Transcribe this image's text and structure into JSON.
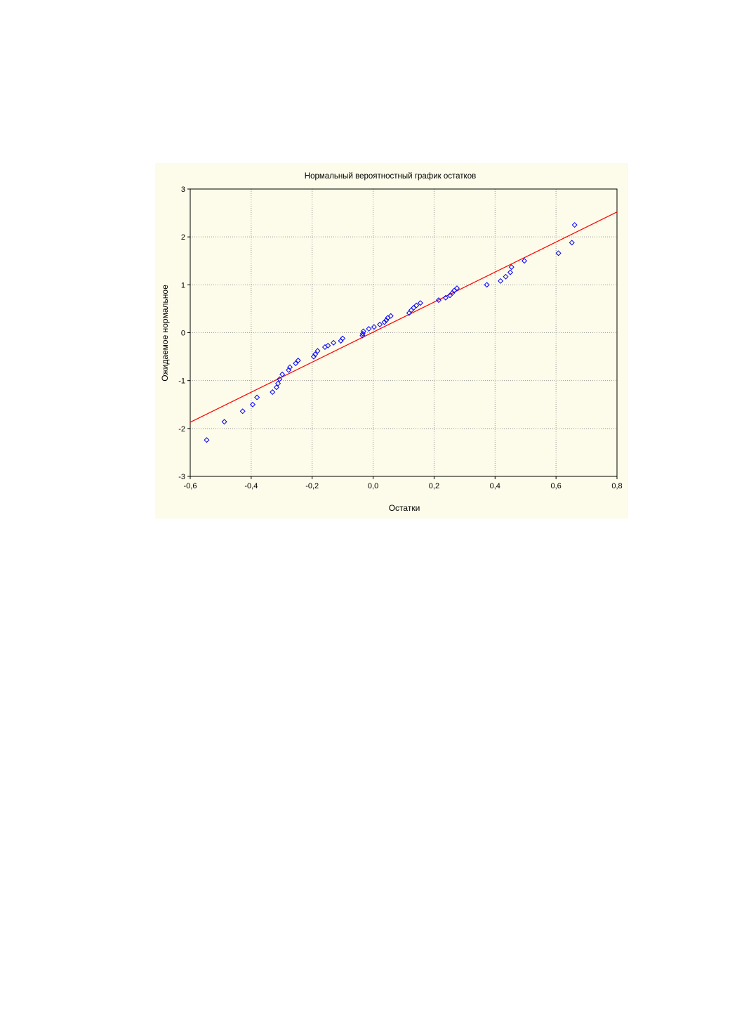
{
  "chart_data": {
    "type": "scatter",
    "title": "Нормальный вероятностный график остатков",
    "xlabel": "Остатки",
    "ylabel": "Ожидаемое нормальное",
    "xlim": [
      -0.6,
      0.8
    ],
    "ylim": [
      -3,
      3
    ],
    "x_ticks": [
      -0.6,
      -0.4,
      -0.2,
      0.0,
      0.2,
      0.4,
      0.6,
      0.8
    ],
    "x_tick_labels": [
      "-0,6",
      "-0,4",
      "-0,2",
      "0,0",
      "0,2",
      "0,4",
      "0,6",
      "0,8"
    ],
    "y_ticks": [
      3,
      2,
      1,
      0,
      -1,
      -2,
      -3
    ],
    "y_tick_labels": [
      "3",
      "2",
      "1",
      "0",
      "-1",
      "-2",
      "-3"
    ],
    "grid": true,
    "legend": "none",
    "marker_color": "#0000ff",
    "line_color": "#ff0000",
    "background_color": "#fdfbe9",
    "series": [
      {
        "kind": "points",
        "x": [
          -0.546,
          -0.488,
          -0.428,
          -0.395,
          -0.381,
          -0.33,
          -0.317,
          -0.312,
          -0.307,
          -0.298,
          -0.277,
          -0.273,
          -0.254,
          -0.246,
          -0.195,
          -0.19,
          -0.182,
          -0.158,
          -0.148,
          -0.13,
          -0.106,
          -0.1,
          -0.035,
          -0.034,
          -0.032,
          -0.014,
          0.003,
          0.022,
          0.037,
          0.043,
          0.048,
          0.058,
          0.118,
          0.125,
          0.133,
          0.142,
          0.155,
          0.215,
          0.238,
          0.252,
          0.26,
          0.266,
          0.275,
          0.373,
          0.418,
          0.435,
          0.45,
          0.454,
          0.496,
          0.608,
          0.652,
          0.661
        ],
        "y": [
          -2.24,
          -1.86,
          -1.64,
          -1.5,
          -1.35,
          -1.24,
          -1.14,
          -1.06,
          -0.97,
          -0.87,
          -0.78,
          -0.72,
          -0.64,
          -0.58,
          -0.5,
          -0.45,
          -0.38,
          -0.3,
          -0.27,
          -0.21,
          -0.17,
          -0.12,
          -0.06,
          -0.02,
          0.03,
          0.08,
          0.12,
          0.17,
          0.22,
          0.26,
          0.31,
          0.35,
          0.41,
          0.47,
          0.52,
          0.57,
          0.62,
          0.68,
          0.73,
          0.78,
          0.83,
          0.88,
          0.93,
          1.0,
          1.08,
          1.17,
          1.26,
          1.37,
          1.5,
          1.66,
          1.88,
          2.25
        ]
      },
      {
        "kind": "line",
        "x": [
          -0.6,
          0.8
        ],
        "y": [
          -1.87,
          2.52
        ]
      }
    ]
  }
}
